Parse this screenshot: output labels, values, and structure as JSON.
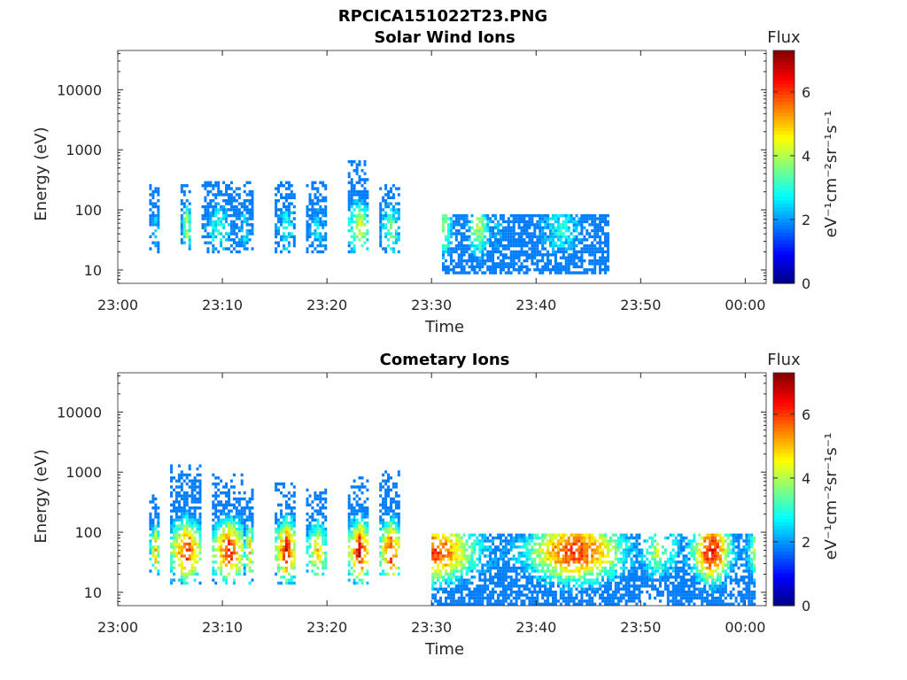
{
  "figure_title": "RPCICA151022T23.PNG",
  "colors": {
    "colormap": [
      "#000080",
      "#0000ff",
      "#0080ff",
      "#00ffff",
      "#80ff80",
      "#ffff00",
      "#ff8000",
      "#ff0000",
      "#800000"
    ],
    "axes": "#262626"
  },
  "chart_data": [
    {
      "type": "heatmap",
      "title": "Solar Wind Ions",
      "xlabel": "Time",
      "ylabel": "Energy (eV)",
      "y_scale": "log",
      "xlim": [
        "23:00",
        "00:02"
      ],
      "ylim": [
        6,
        45000
      ],
      "x_ticks": [
        "23:00",
        "23:10",
        "23:20",
        "23:30",
        "23:40",
        "23:50",
        "00:00"
      ],
      "y_ticks": [
        "10",
        "100",
        "1000",
        "10000"
      ],
      "colorbar": {
        "label": "Flux",
        "unit": "eV⁻¹cm⁻²sr⁻¹s⁻¹",
        "range": [
          0,
          7.3
        ],
        "ticks": [
          "0",
          "2",
          "4",
          "6"
        ]
      },
      "bursts": [
        {
          "t0": "23:03",
          "t1": "23:04",
          "e_min": 18,
          "e_max": 280,
          "flux_peak": 2.5
        },
        {
          "t0": "23:06",
          "t1": "23:07",
          "e_min": 18,
          "e_max": 280,
          "flux_peak": 4.0
        },
        {
          "t0": "23:08",
          "t1": "23:11",
          "e_min": 18,
          "e_max": 280,
          "flux_peak": 3.0
        },
        {
          "t0": "23:11",
          "t1": "23:13",
          "e_min": 18,
          "e_max": 280,
          "flux_peak": 2.5
        },
        {
          "t0": "23:15",
          "t1": "23:17",
          "e_min": 18,
          "e_max": 280,
          "flux_peak": 3.0
        },
        {
          "t0": "23:18",
          "t1": "23:20",
          "e_min": 18,
          "e_max": 280,
          "flux_peak": 2.5
        },
        {
          "t0": "23:22",
          "t1": "23:24",
          "e_min": 18,
          "e_max": 600,
          "flux_peak": 4.5
        },
        {
          "t0": "23:25",
          "t1": "23:27",
          "e_min": 18,
          "e_max": 260,
          "flux_peak": 3.5
        },
        {
          "t0": "23:31",
          "t1": "23:36",
          "e_min": 8,
          "e_max": 80,
          "flux_peak": 3.8
        },
        {
          "t0": "23:36",
          "t1": "23:47",
          "e_min": 8,
          "e_max": 80,
          "flux_peak": 2.8
        }
      ]
    },
    {
      "type": "heatmap",
      "title": "Cometary Ions",
      "xlabel": "Time",
      "ylabel": "Energy (eV)",
      "y_scale": "log",
      "xlim": [
        "23:00",
        "00:02"
      ],
      "ylim": [
        6,
        45000
      ],
      "x_ticks": [
        "23:00",
        "23:10",
        "23:20",
        "23:30",
        "23:40",
        "23:50",
        "00:00"
      ],
      "y_ticks": [
        "10",
        "100",
        "1000",
        "10000"
      ],
      "colorbar": {
        "label": "Flux",
        "unit": "eV⁻¹cm⁻²sr⁻¹s⁻¹",
        "range": [
          0,
          7.3
        ],
        "ticks": [
          "0",
          "2",
          "4",
          "6"
        ]
      },
      "bursts": [
        {
          "t0": "23:03",
          "t1": "23:04",
          "e_min": 18,
          "e_max": 400,
          "flux_peak": 5.0
        },
        {
          "t0": "23:05",
          "t1": "23:08",
          "e_min": 12,
          "e_max": 1300,
          "flux_peak": 6.3
        },
        {
          "t0": "23:09",
          "t1": "23:12",
          "e_min": 12,
          "e_max": 900,
          "flux_peak": 6.5
        },
        {
          "t0": "23:12",
          "t1": "23:13",
          "e_min": 12,
          "e_max": 500,
          "flux_peak": 5.0
        },
        {
          "t0": "23:15",
          "t1": "23:17",
          "e_min": 12,
          "e_max": 600,
          "flux_peak": 6.5
        },
        {
          "t0": "23:18",
          "t1": "23:20",
          "e_min": 18,
          "e_max": 500,
          "flux_peak": 5.0
        },
        {
          "t0": "23:22",
          "t1": "23:24",
          "e_min": 12,
          "e_max": 800,
          "flux_peak": 6.8
        },
        {
          "t0": "23:25",
          "t1": "23:27",
          "e_min": 18,
          "e_max": 1000,
          "flux_peak": 6.3
        },
        {
          "t0": "23:30",
          "t1": "23:50",
          "e_min": 6,
          "e_max": 85,
          "flux_peak": 6.0
        },
        {
          "t0": "23:50",
          "t1": "23:53",
          "e_min": 6,
          "e_max": 85,
          "flux_peak": 4.0
        },
        {
          "t0": "23:53",
          "t1": "00:01",
          "e_min": 6,
          "e_max": 85,
          "flux_peak": 6.3
        }
      ]
    }
  ]
}
